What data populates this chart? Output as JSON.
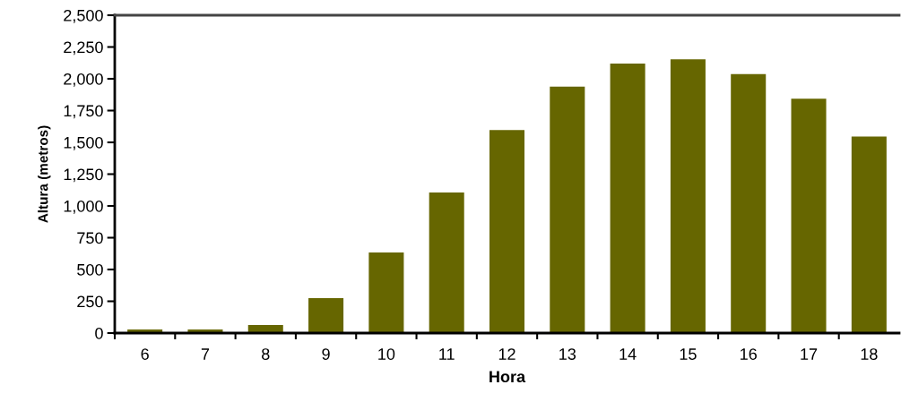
{
  "chart_data": {
    "type": "bar",
    "xlabel": "Hora",
    "ylabel": "Altura (metros)",
    "categories": [
      "6",
      "7",
      "8",
      "9",
      "10",
      "11",
      "12",
      "13",
      "14",
      "15",
      "16",
      "17",
      "18"
    ],
    "values": [
      28,
      28,
      63,
      275,
      633,
      1105,
      1597,
      1938,
      2120,
      2153,
      2037,
      1843,
      1545
    ],
    "color": "#666600",
    "ylim": [
      0,
      2500
    ],
    "yticks": [
      0,
      250,
      500,
      750,
      {
        "value": 1000,
        "label": "1,000"
      },
      {
        "value": 1250,
        "label": "1,250"
      },
      {
        "value": 1500,
        "label": "1,500"
      },
      {
        "value": 1750,
        "label": "1,750"
      },
      {
        "value": 2000,
        "label": "2,000"
      },
      {
        "value": 2250,
        "label": "2,250"
      },
      {
        "value": 2500,
        "label": "2,500"
      }
    ],
    "grid": false,
    "legend": false
  }
}
